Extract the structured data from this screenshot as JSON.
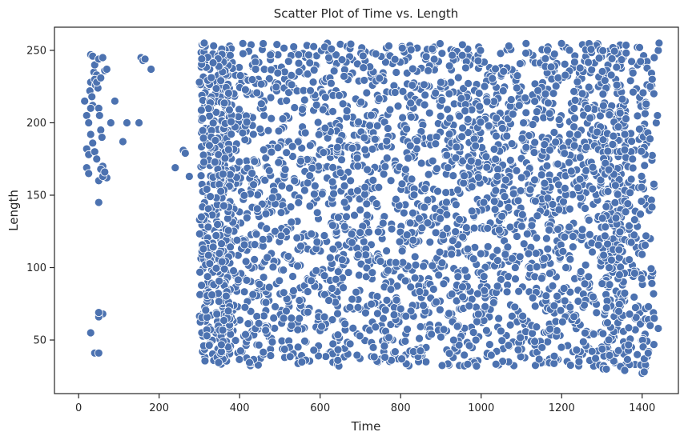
{
  "chart_data": {
    "type": "scatter",
    "title": "Scatter Plot of Time vs. Length",
    "xlabel": "Time",
    "ylabel": "Length",
    "xlim": [
      -60,
      1490
    ],
    "ylim": [
      13,
      266
    ],
    "xticks": [
      0,
      200,
      400,
      600,
      800,
      1000,
      1200,
      1400
    ],
    "yticks": [
      50,
      100,
      150,
      200,
      250
    ],
    "grid": false,
    "legend": "none",
    "point_color": "#4c72b0",
    "point_edge_color": "#ffffff",
    "series": [
      {
        "x": [
          15,
          20,
          25,
          28,
          30,
          33,
          35,
          38,
          40,
          42,
          45,
          48,
          50,
          52,
          55,
          58,
          60,
          65,
          70,
          20,
          25,
          30,
          35,
          40,
          45,
          50,
          55,
          60,
          65,
          30,
          35,
          40,
          45,
          50,
          55,
          60,
          65,
          70,
          20,
          25,
          30,
          40,
          50,
          60,
          80,
          90,
          110,
          120,
          150,
          155,
          160,
          165,
          180,
          30,
          50,
          50,
          50,
          240,
          260,
          265,
          275,
          300,
          305,
          310,
          312,
          1410,
          1420,
          1425,
          1430,
          1435,
          1438,
          1440,
          1442,
          1400,
          1405,
          1415,
          1420,
          1430,
          1440
        ],
        "y": [
          215,
          205,
          200,
          222,
          228,
          218,
          212,
          235,
          240,
          226,
          233,
          224,
          210,
          205,
          195,
          190,
          170,
          165,
          162,
          182,
          178,
          192,
          186,
          180,
          175,
          160,
          168,
          163,
          166,
          247,
          246,
          230,
          228,
          244,
          231,
          245,
          236,
          237,
          169,
          165,
          55,
          41,
          145,
          68,
          200,
          215,
          187,
          200,
          200,
          245,
          243,
          244,
          237,
          210,
          66,
          69,
          41,
          169,
          181,
          179,
          163,
          228,
          135,
          113,
          255,
          213,
          225,
          230,
          245,
          200,
          205,
          250,
          255,
          27,
          28,
          41,
          60,
          65,
          58
        ],
        "dense_block": {
          "x_range": [
            300,
            1440
          ],
          "y_range": [
            24,
            255
          ]
        }
      }
    ]
  }
}
